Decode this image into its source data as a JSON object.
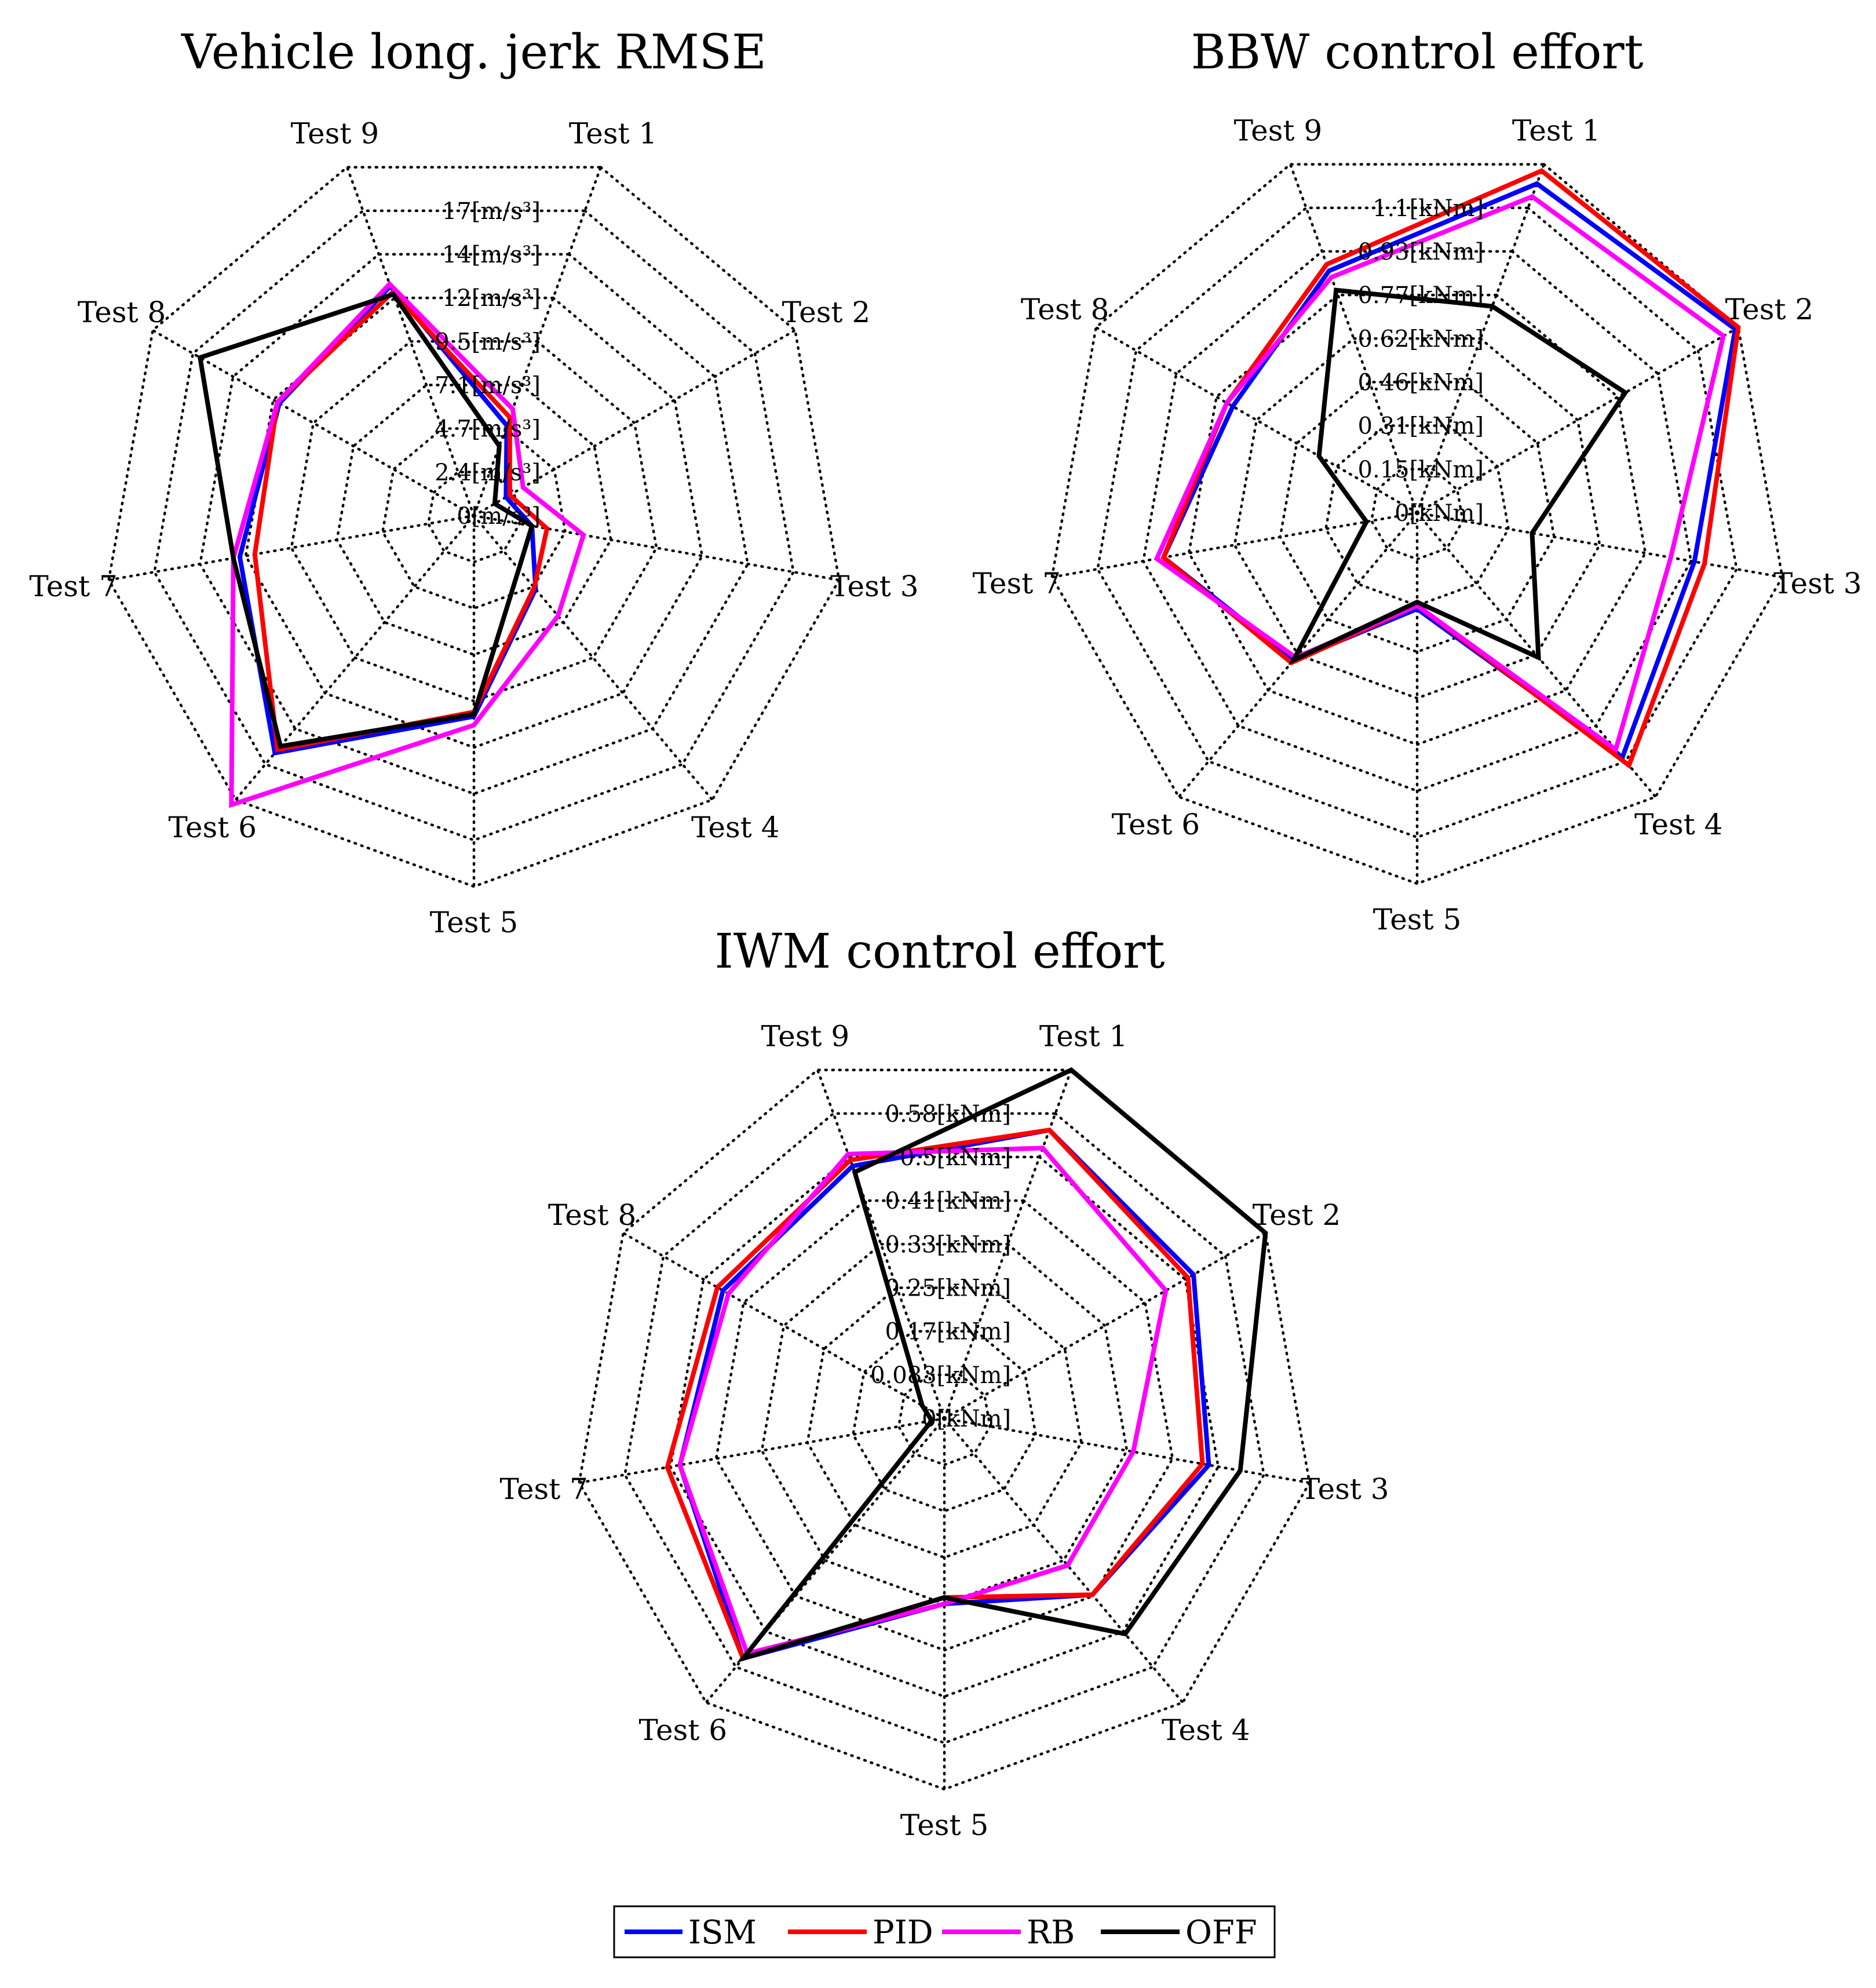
{
  "legend": [
    {
      "name": "ISM",
      "color": "#0000ff"
    },
    {
      "name": "PID",
      "color": "#ff0000"
    },
    {
      "name": "RB",
      "color": "#ff00ff"
    },
    {
      "name": "OFF",
      "color": "#000000"
    }
  ],
  "chart_data": [
    {
      "type": "radar",
      "title": "Vehicle long. jerk RMSE",
      "categories": [
        "Test 1",
        "Test 2",
        "Test 3",
        "Test 4",
        "Test 5",
        "Test 6",
        "Test 7",
        "Test 8",
        "Test 9"
      ],
      "tick_labels": [
        "0[m/s³]",
        "2.4[m/s³]",
        "4.7[m/s³]",
        "7.1[m/s³]",
        "9.5[m/s³]",
        "12[m/s³]",
        "14[m/s³]",
        "17[m/s³]"
      ],
      "rmax": 17,
      "series": [
        {
          "name": "ISM",
          "color": "#0000ff",
          "values": [
            4.4,
            1.7,
            2.7,
            4.4,
            9.2,
            14.2,
            10.9,
            10.3,
            11.2
          ]
        },
        {
          "name": "PID",
          "color": "#ff0000",
          "values": [
            4.8,
            1.9,
            3.4,
            4.3,
            9.0,
            14.0,
            10.2,
            10.4,
            10.9
          ]
        },
        {
          "name": "RB",
          "color": "#ff00ff",
          "values": [
            5.2,
            2.6,
            5.1,
            6.0,
            9.6,
            17.3,
            11.2,
            10.4,
            11.3
          ]
        },
        {
          "name": "OFF",
          "color": "#000000",
          "values": [
            3.4,
            1.1,
            2.7,
            3.2,
            9.1,
            13.8,
            11.2,
            14.5,
            10.8
          ]
        }
      ]
    },
    {
      "type": "radar",
      "title": "BBW control effort",
      "categories": [
        "Test 1",
        "Test 2",
        "Test 3",
        "Test 4",
        "Test 5",
        "Test 6",
        "Test 7",
        "Test 8",
        "Test 9"
      ],
      "tick_labels": [
        "0[kNm]",
        "0.15[kNm]",
        "0.31[kNm]",
        "0.46[kNm]",
        "0.62[kNm]",
        "0.77[kNm]",
        "0.93[kNm]",
        "1.1[kNm]"
      ],
      "rmax": 1.08,
      "series": [
        {
          "name": "ISM",
          "color": "#0000ff",
          "values": [
            1.02,
            1.07,
            0.82,
            0.93,
            0.28,
            0.56,
            0.75,
            0.62,
            0.75
          ]
        },
        {
          "name": "PID",
          "color": "#ff0000",
          "values": [
            1.06,
            1.08,
            0.85,
            0.96,
            0.27,
            0.57,
            0.75,
            0.64,
            0.77
          ]
        },
        {
          "name": "RB",
          "color": "#ff00ff",
          "values": [
            0.98,
            1.03,
            0.75,
            0.9,
            0.27,
            0.55,
            0.77,
            0.64,
            0.73
          ]
        },
        {
          "name": "OFF",
          "color": "#000000",
          "values": [
            0.64,
            0.7,
            0.34,
            0.55,
            0.26,
            0.56,
            0.15,
            0.33,
            0.69
          ]
        }
      ]
    },
    {
      "type": "radar",
      "title": "IWM control effort",
      "categories": [
        "Test 1",
        "Test 2",
        "Test 3",
        "Test 4",
        "Test 5",
        "Test 6",
        "Test 7",
        "Test 8",
        "Test 9"
      ],
      "tick_labels": [
        "0[kNm]",
        "0.083[kNm]",
        "0.17[kNm]",
        "0.25[kNm]",
        "0.33[kNm]",
        "0.41[kNm]",
        "0.5[kNm]",
        "0.58[kNm]"
      ],
      "rmax": 0.58,
      "series": [
        {
          "name": "ISM",
          "color": "#0000ff",
          "values": [
            0.48,
            0.45,
            0.42,
            0.36,
            0.29,
            0.49,
            0.42,
            0.4,
            0.42
          ]
        },
        {
          "name": "PID",
          "color": "#ff0000",
          "values": [
            0.48,
            0.44,
            0.41,
            0.36,
            0.28,
            0.49,
            0.44,
            0.41,
            0.43
          ]
        },
        {
          "name": "RB",
          "color": "#ff00ff",
          "values": [
            0.45,
            0.4,
            0.3,
            0.3,
            0.29,
            0.48,
            0.42,
            0.39,
            0.44
          ]
        },
        {
          "name": "OFF",
          "color": "#000000",
          "values": [
            0.58,
            0.58,
            0.47,
            0.44,
            0.28,
            0.49,
            0.02,
            0.04,
            0.41
          ]
        }
      ]
    }
  ]
}
